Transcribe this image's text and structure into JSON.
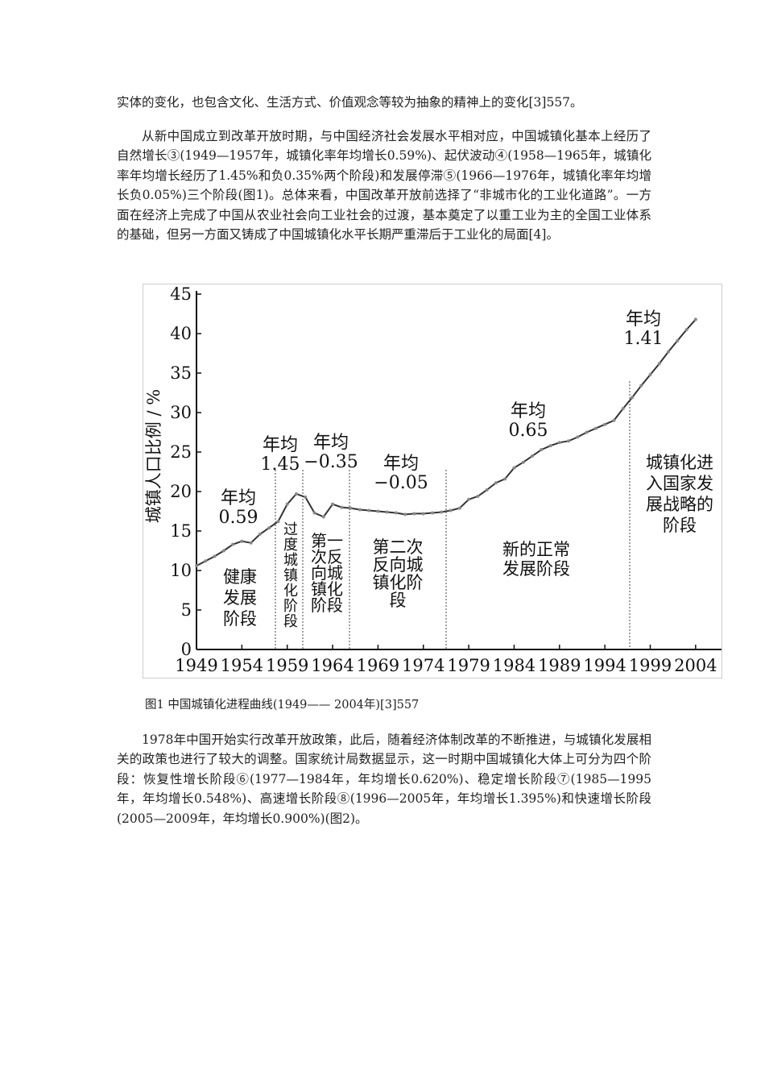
{
  "paragraphs": [
    "实体的变化，也包含文化、生活方式、价值观念等较为抽象的精神上的变化[3]557。",
    "从新中国成立到改革开放时期，与中国经济社会发展水平相对应，中国城镇化基本上经历了自然增长③(1949—1957年，城镇化率年均增长0.59%)、起伏波动④(1958—1965年，城镇化率年均增长经历了1.45%和负0.35%两个阶段)和发展停滞⑤(1966—1976年，城镇化率年均增长负0.05%)三个阶段(图1)。总体来看，中国改革开放前选择了“非城市化的工业化道路”。一方面在经济上完成了中国从农业社会向工业社会的过渡，基本奠定了以重工业为主的全国工业体系的基础，但另一方面又铸成了中国城镇化水平长期严重滞后于工业化的局面[4]。"
  ],
  "caption": "图1  中国城镇化进程曲线(1949—— 2004年)[3]557",
  "paragraphs_after": [
    "1978年中国开始实行改革开放政策，此后，随着经济体制改革的不断推进，与城镇化发展相关的政策也进行了较大的调整。国家统计局数据显示，这一时期中国城镇化大体上可分为四个阶段：恢复性增长阶段⑥(1977—1984年，年均增长0.620%)、稳定增长阶段⑦(1985—1995年，年均增长0.548%)、高速增长阶段⑧(1996—2005年，年均增长1.395%)和快速增长阶段(2005—2009年，年均增长0.900%)(图2)。"
  ],
  "chart_data": {
    "type": "line",
    "y_label": "城镇人口比例 / %",
    "x": [
      1949,
      1950,
      1951,
      1952,
      1953,
      1954,
      1955,
      1956,
      1957,
      1958,
      1959,
      1960,
      1961,
      1962,
      1963,
      1964,
      1965,
      1966,
      1967,
      1968,
      1969,
      1970,
      1971,
      1972,
      1973,
      1974,
      1975,
      1976,
      1977,
      1978,
      1979,
      1980,
      1981,
      1982,
      1983,
      1984,
      1985,
      1986,
      1987,
      1988,
      1989,
      1990,
      1991,
      1992,
      1993,
      1994,
      1995,
      1996,
      1997,
      1998,
      1999,
      2000,
      2001,
      2002,
      2003,
      2004
    ],
    "values": [
      10.6,
      11.2,
      11.8,
      12.5,
      13.3,
      13.7,
      13.5,
      14.6,
      15.4,
      16.2,
      18.4,
      19.7,
      19.3,
      17.3,
      16.8,
      18.4,
      18.0,
      17.9,
      17.7,
      17.6,
      17.5,
      17.4,
      17.3,
      17.1,
      17.2,
      17.2,
      17.3,
      17.4,
      17.6,
      17.9,
      19.0,
      19.4,
      20.2,
      21.1,
      21.6,
      23.0,
      23.7,
      24.5,
      25.3,
      25.8,
      26.2,
      26.4,
      26.9,
      27.5,
      28.0,
      28.5,
      29.0,
      30.5,
      31.9,
      33.4,
      34.8,
      36.2,
      37.7,
      39.1,
      40.5,
      41.8
    ],
    "color": "#333333",
    "xlim": [
      1949,
      2007
    ],
    "xticks": [
      1949,
      1954,
      1959,
      1964,
      1969,
      1974,
      1979,
      1984,
      1989,
      1994,
      1999,
      2004
    ],
    "ylim": [
      0,
      45
    ],
    "yticks": [
      0,
      5,
      10,
      15,
      20,
      25,
      30,
      35,
      40,
      45
    ],
    "annotations": [
      {
        "lines": [
          "年均",
          "0.59"
        ]
      },
      {
        "lines": [
          "年均",
          "1.45"
        ]
      },
      {
        "lines": [
          "年均",
          "−0.35"
        ]
      },
      {
        "lines": [
          "年均",
          "−0.05"
        ]
      },
      {
        "lines": [
          "年均",
          "0.65"
        ]
      },
      {
        "lines": [
          "年均",
          "1.41"
        ]
      },
      {
        "lines": [
          "健康",
          "发展",
          "阶段"
        ]
      },
      {
        "lines": [
          "过",
          "度",
          "城",
          "镇",
          "化",
          "阶",
          "段"
        ]
      },
      {
        "lines": [
          "第一",
          "次反",
          "向城",
          "镇化",
          "阶段"
        ]
      },
      {
        "lines": [
          "第二次",
          "反向城",
          "镇化阶",
          "段"
        ]
      },
      {
        "lines": [
          "新的正常",
          "发展阶段"
        ]
      },
      {
        "lines": [
          "城镇化进",
          "入国家发",
          "展战略的",
          "阶段"
        ]
      }
    ]
  }
}
